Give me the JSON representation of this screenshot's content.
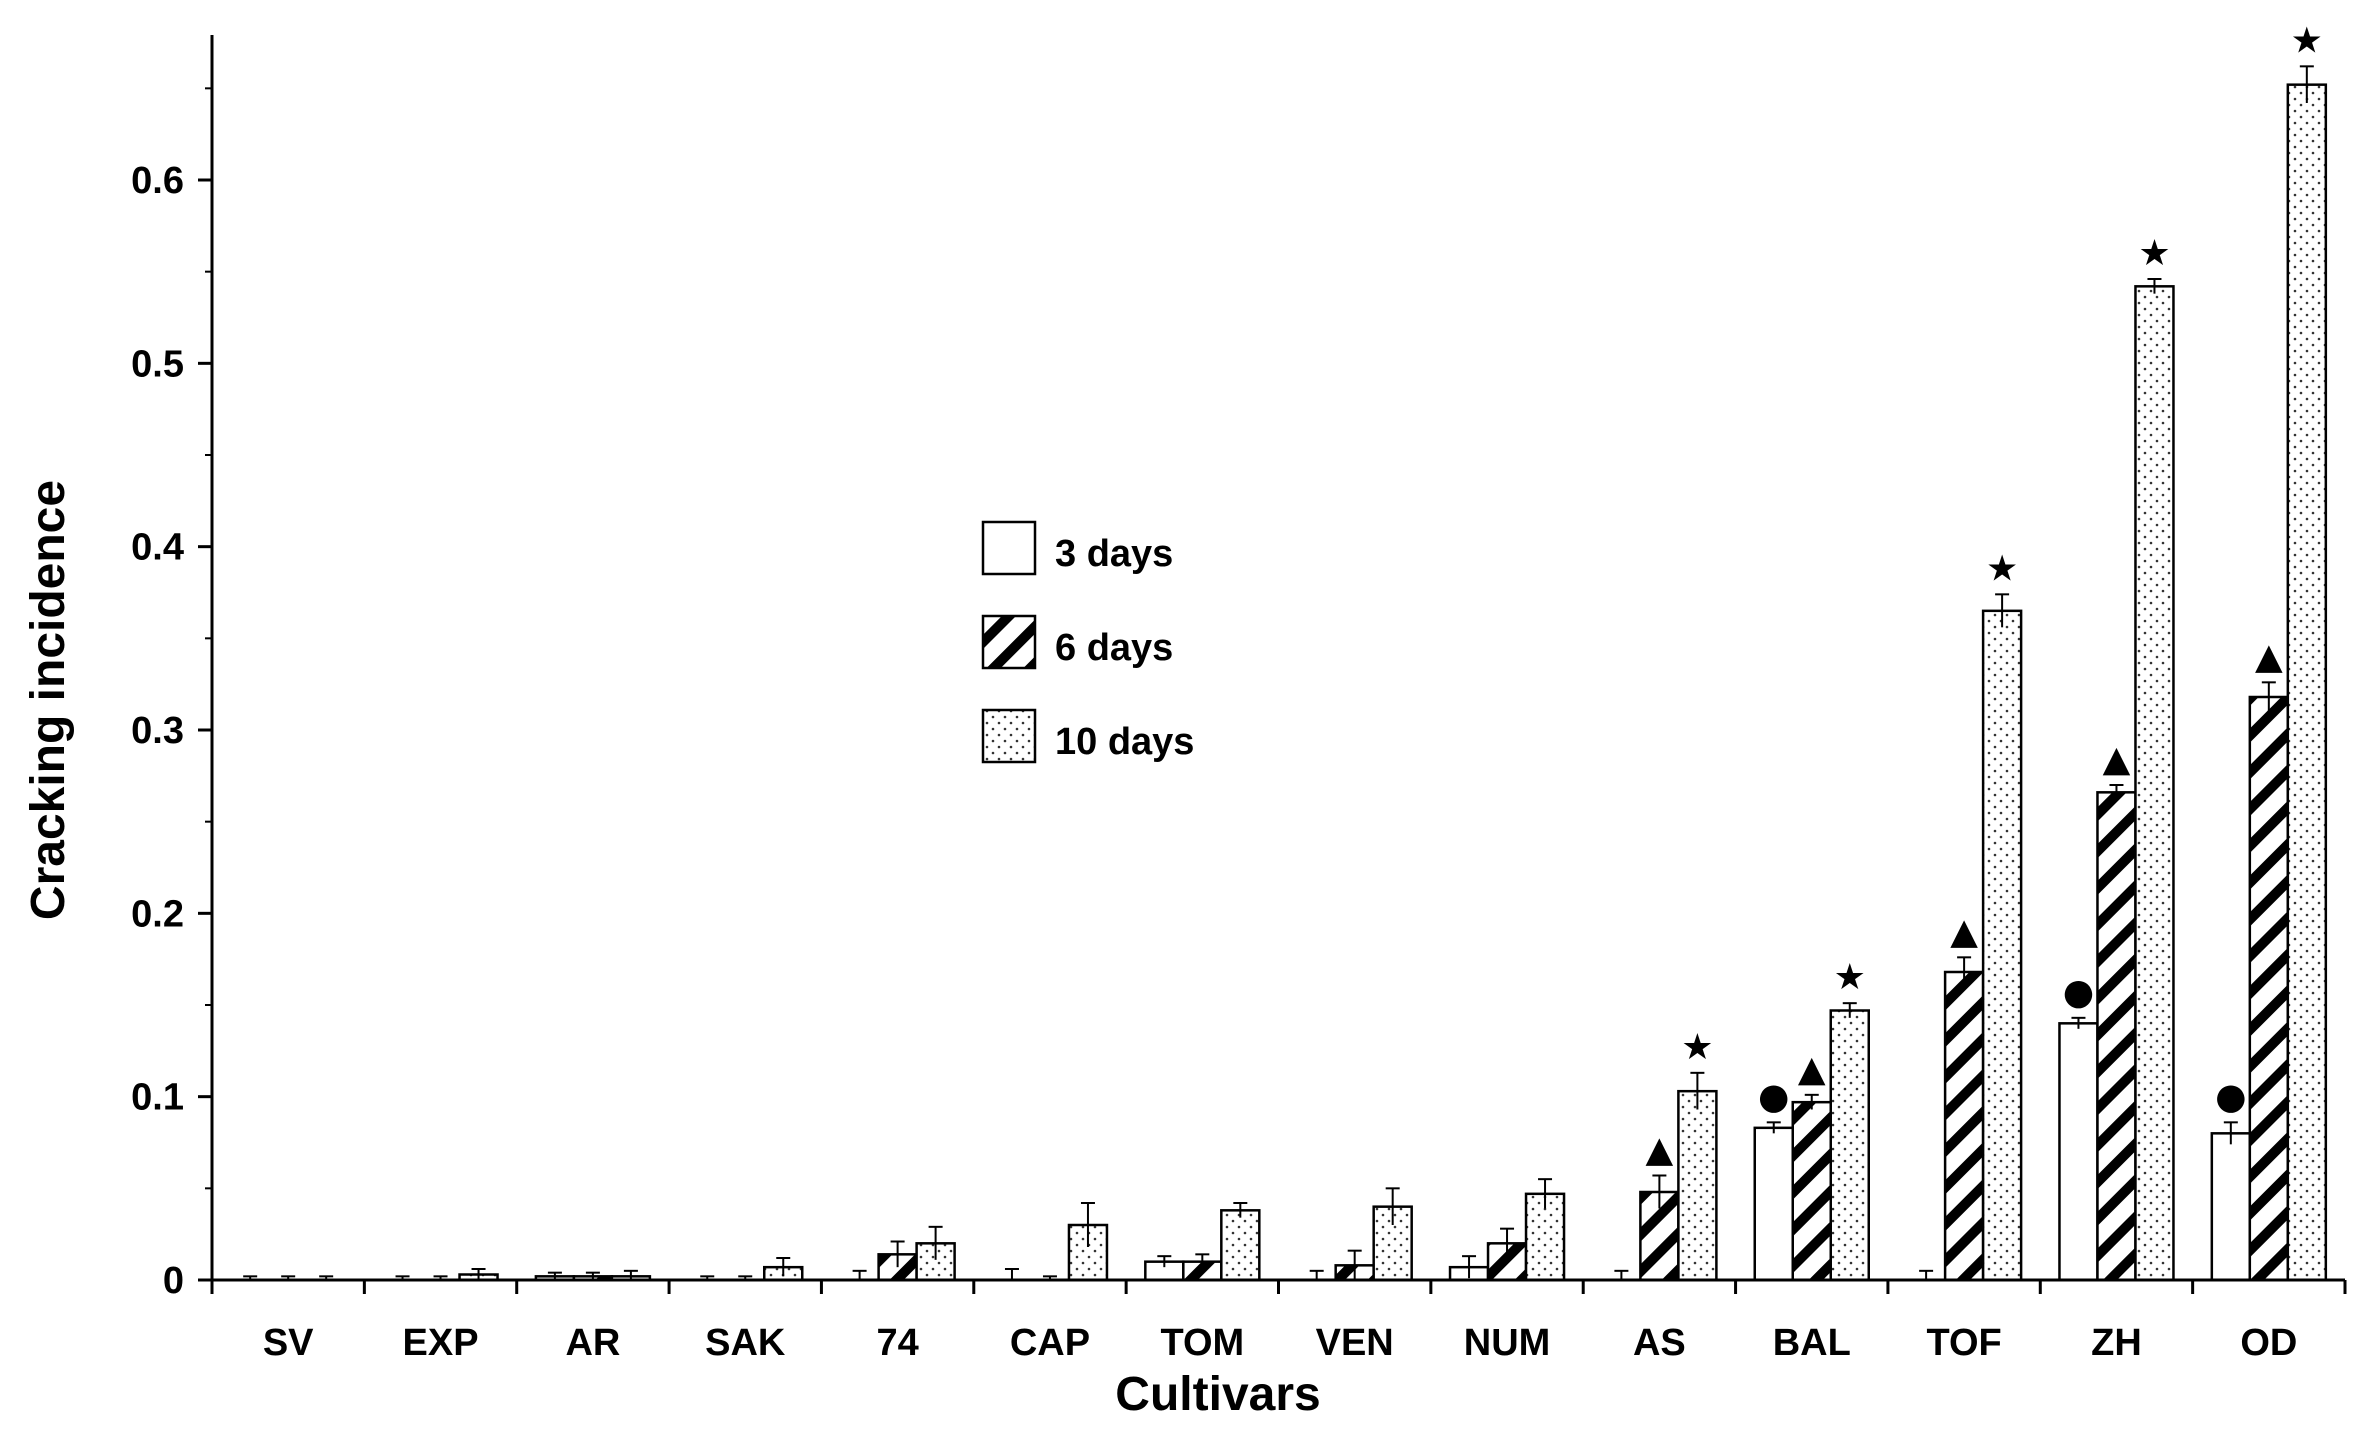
{
  "chart_data": {
    "type": "bar",
    "title": "",
    "xlabel": "Cultivars",
    "ylabel": "Cracking incidence",
    "ylim": [
      0,
      0.68
    ],
    "yticks": [
      0,
      0.1,
      0.2,
      0.3,
      0.4,
      0.5,
      0.6
    ],
    "ytick_labels": [
      "0",
      "0.1",
      "0.2",
      "0.3",
      "0.4",
      "0.5",
      "0.6"
    ],
    "grid": false,
    "legend_position": "center",
    "categories": [
      "SV",
      "EXP",
      "AR",
      "SAK",
      "74",
      "CAP",
      "TOM",
      "VEN",
      "NUM",
      "AS",
      "BAL",
      "TOF",
      "ZH",
      "OD"
    ],
    "series": [
      {
        "name": "3 days",
        "pattern": "empty",
        "values": [
          0,
          0,
          0.002,
          0,
          0,
          0,
          0.01,
          0,
          0.007,
          0,
          0.083,
          0,
          0.14,
          0.08
        ],
        "errors": [
          0.002,
          0.002,
          0.002,
          0.002,
          0.005,
          0.006,
          0.003,
          0.005,
          0.006,
          0.005,
          0.003,
          0.005,
          0.003,
          0.006
        ],
        "markers": [
          "",
          "",
          "",
          "",
          "",
          "",
          "",
          "",
          "",
          "",
          "●",
          "",
          "●",
          "●"
        ]
      },
      {
        "name": "6 days",
        "pattern": "hatched",
        "values": [
          0,
          0,
          0.002,
          0,
          0.014,
          0,
          0.01,
          0.008,
          0.02,
          0.048,
          0.097,
          0.168,
          0.266,
          0.318
        ],
        "errors": [
          0.002,
          0.002,
          0.002,
          0.002,
          0.007,
          0.002,
          0.004,
          0.008,
          0.008,
          0.009,
          0.004,
          0.008,
          0.004,
          0.008
        ],
        "markers": [
          "",
          "",
          "",
          "",
          "",
          "",
          "",
          "",
          "",
          "▲",
          "▲",
          "▲",
          "▲",
          "▲"
        ]
      },
      {
        "name": "10 days",
        "pattern": "dotted",
        "values": [
          0,
          0.003,
          0.002,
          0.007,
          0.02,
          0.03,
          0.038,
          0.04,
          0.047,
          0.103,
          0.147,
          0.365,
          0.542,
          0.652
        ],
        "errors": [
          0.002,
          0.003,
          0.003,
          0.005,
          0.009,
          0.012,
          0.004,
          0.01,
          0.008,
          0.01,
          0.004,
          0.009,
          0.004,
          0.01
        ],
        "markers": [
          "",
          "",
          "",
          "",
          "",
          "",
          "",
          "",
          "",
          "★",
          "★",
          "★",
          "★",
          "★"
        ]
      }
    ]
  }
}
